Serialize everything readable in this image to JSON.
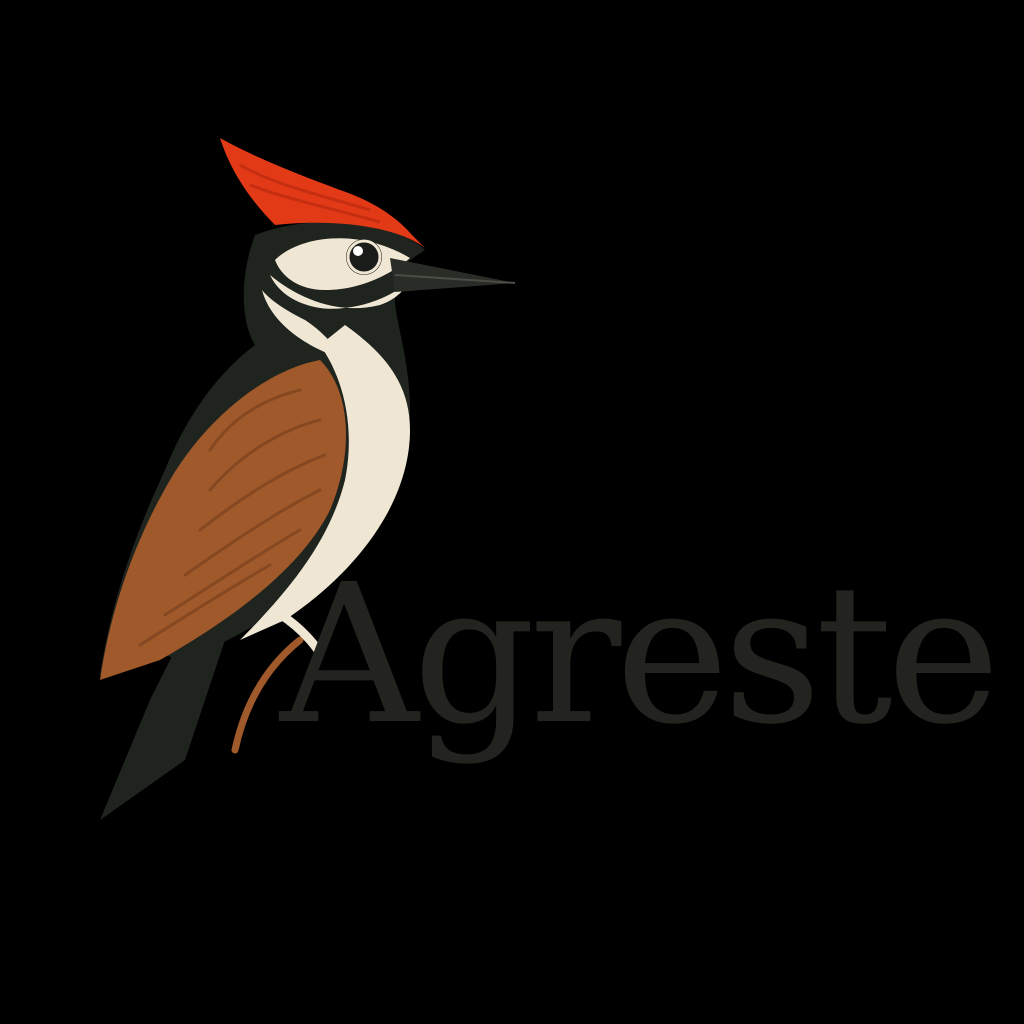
{
  "brand": {
    "name": "Agreste"
  },
  "logo": {
    "icon": "woodpecker-icon"
  },
  "colors": {
    "background": "#000000",
    "text": "#23241f",
    "crest": "#e23a17",
    "plumage_dark": "#1f241e",
    "cream": "#efe7d4",
    "wing_brown": "#a0592a",
    "beak": "#2a2d27"
  }
}
